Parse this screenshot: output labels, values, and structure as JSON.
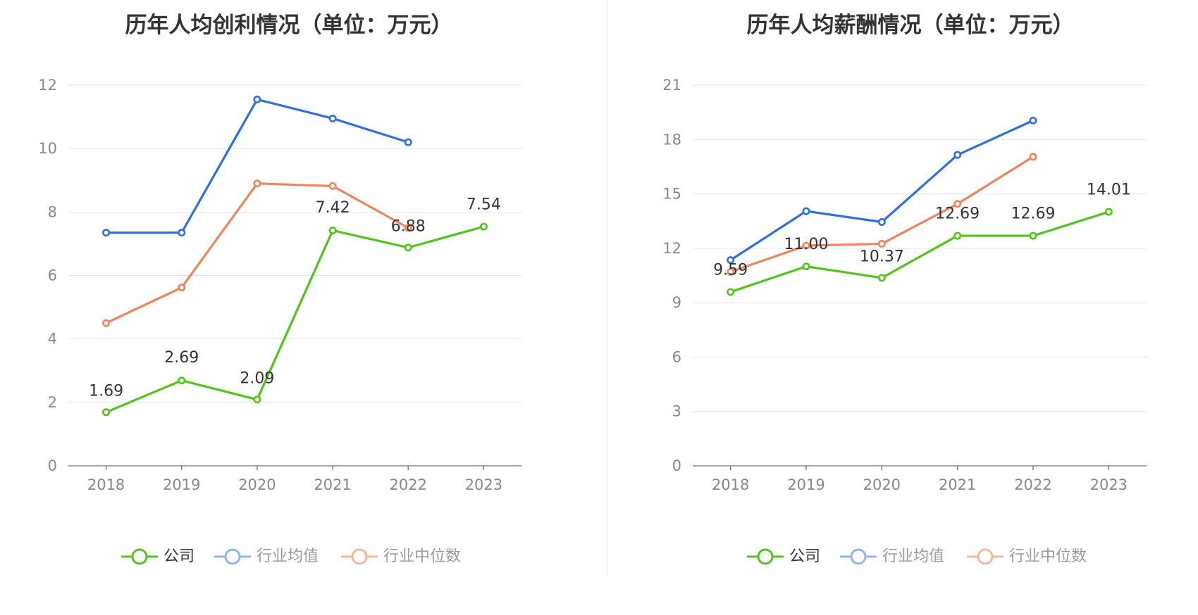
{
  "chart_data": [
    {
      "type": "line",
      "title": "历年人均创利情况（单位：万元）",
      "categories": [
        "2018",
        "2019",
        "2020",
        "2021",
        "2022",
        "2023"
      ],
      "ylim": [
        0,
        12
      ],
      "yticks": [
        "0",
        "2",
        "4",
        "6",
        "8",
        "10",
        "12"
      ],
      "grid": true,
      "legend_position": "bottom",
      "series": [
        {
          "name": "公司",
          "color": "#52c41a",
          "values": [
            1.69,
            2.69,
            2.09,
            7.42,
            6.88,
            7.54
          ],
          "labels": [
            "1.69",
            "2.69",
            "2.09",
            "7.42",
            "6.88",
            "7.54"
          ]
        },
        {
          "name": "行业均值",
          "color": "#2f6fde",
          "values": [
            7.35,
            7.35,
            11.55,
            10.95,
            10.2,
            null
          ]
        },
        {
          "name": "行业中位数",
          "color": "#f0845a",
          "values": [
            4.5,
            5.62,
            8.9,
            8.82,
            7.5,
            null
          ]
        }
      ]
    },
    {
      "type": "line",
      "title": "历年人均薪酬情况（单位：万元）",
      "categories": [
        "2018",
        "2019",
        "2020",
        "2021",
        "2022",
        "2023"
      ],
      "ylim": [
        0,
        21
      ],
      "yticks": [
        "0",
        "3",
        "6",
        "9",
        "12",
        "15",
        "18",
        "21"
      ],
      "grid": true,
      "legend_position": "bottom",
      "series": [
        {
          "name": "公司",
          "color": "#52c41a",
          "values": [
            9.59,
            11.0,
            10.37,
            12.69,
            12.69,
            14.01
          ],
          "labels": [
            "9.59",
            "11.00",
            "10.37",
            "12.69",
            "12.69",
            "14.01"
          ]
        },
        {
          "name": "行业均值",
          "color": "#2f6fde",
          "values": [
            11.35,
            14.05,
            13.45,
            17.15,
            19.05,
            null
          ]
        },
        {
          "name": "行业中位数",
          "color": "#f0845a",
          "values": [
            10.7,
            12.15,
            12.25,
            14.45,
            17.05,
            null
          ]
        }
      ]
    }
  ],
  "legend_colors": {
    "active": "#52c41a",
    "inactive_blue": "#92b3f0",
    "inactive_orange": "#f7b79c",
    "active_text": "#333333",
    "inactive_text": "#999999"
  }
}
